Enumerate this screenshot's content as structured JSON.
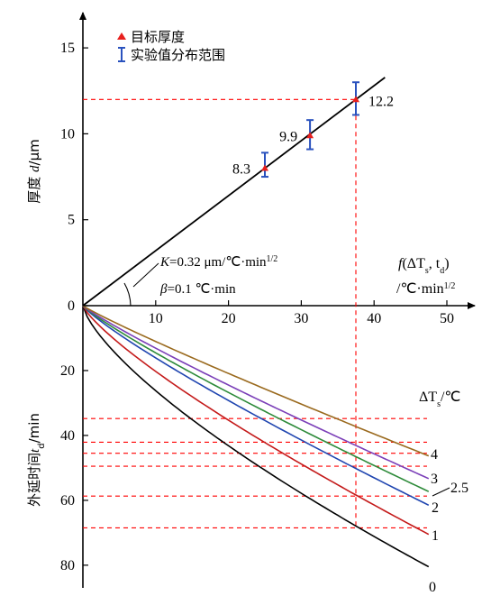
{
  "chart_data": [
    {
      "type": "line",
      "panel": "top",
      "ylabel_prefix": "厚度 ",
      "ylabel_var": "d",
      "ylabel_unit": "/μm",
      "xlabel_func": "f",
      "xlabel_args_open": "(ΔT",
      "xlabel_sub_s": "s",
      "xlabel_mid": ", t",
      "xlabel_sub_d": "d",
      "xlabel_close": ")",
      "xlabel_unit": "/℃·min",
      "xlabel_unit_sup": "1/2",
      "xlim": [
        0,
        50
      ],
      "ylim": [
        0,
        16
      ],
      "xticks": [
        "10",
        "20",
        "30",
        "40",
        "50"
      ],
      "yticks": [
        "0",
        "5",
        "10",
        "15"
      ],
      "fit_line": {
        "slope": 0.32,
        "x": [
          0,
          41.5
        ]
      },
      "annotation_k_var": "K",
      "annotation_k_text": "=0.32 μm/℃·min",
      "annotation_k_sup": "1/2",
      "annotation_beta_var": "β",
      "annotation_beta_text": "=0.1 ℃·min",
      "legend": [
        {
          "label": "目标厚度",
          "marker": "triangle",
          "color": "#e8201e"
        },
        {
          "label": "实验值分布范围",
          "marker": "errorbar",
          "color": "#2a52be"
        }
      ],
      "points": [
        {
          "x": 25.0,
          "y": 8.0,
          "err_low": 7.5,
          "err_high": 8.9,
          "label": "8.3"
        },
        {
          "x": 31.2,
          "y": 9.9,
          "err_low": 9.1,
          "err_high": 10.8,
          "label": "9.9"
        },
        {
          "x": 37.5,
          "y": 12.0,
          "err_low": 11.1,
          "err_high": 13.0,
          "label": "12.2"
        }
      ],
      "guide_y": 12.0,
      "guide_x": 37.5
    },
    {
      "type": "line",
      "panel": "bottom",
      "ylabel_prefix": "外延时间",
      "ylabel_var": "t",
      "ylabel_sub": "d",
      "ylabel_unit": "/min",
      "ylim": [
        0,
        80
      ],
      "yticks": [
        "20",
        "40",
        "60",
        "80"
      ],
      "legend_title_delta": "ΔT",
      "legend_title_sub": "s",
      "legend_title_unit": "/℃",
      "series": [
        {
          "name": "0",
          "color": "#000000",
          "end_t": 80.5
        },
        {
          "name": "1",
          "color": "#c41a1a",
          "end_t": 70.5
        },
        {
          "name": "2",
          "color": "#1f45b0",
          "end_t": 61.5
        },
        {
          "name": "2.5",
          "color": "#2e8b3a",
          "end_t": 57.3
        },
        {
          "name": "3",
          "color": "#7b3fb8",
          "end_t": 53.3
        },
        {
          "name": "4",
          "color": "#9a6a1e",
          "end_t": 46.3
        }
      ],
      "guide_times": [
        34.8,
        42.1,
        45.5,
        49.5,
        58.7,
        68.5
      ]
    }
  ]
}
